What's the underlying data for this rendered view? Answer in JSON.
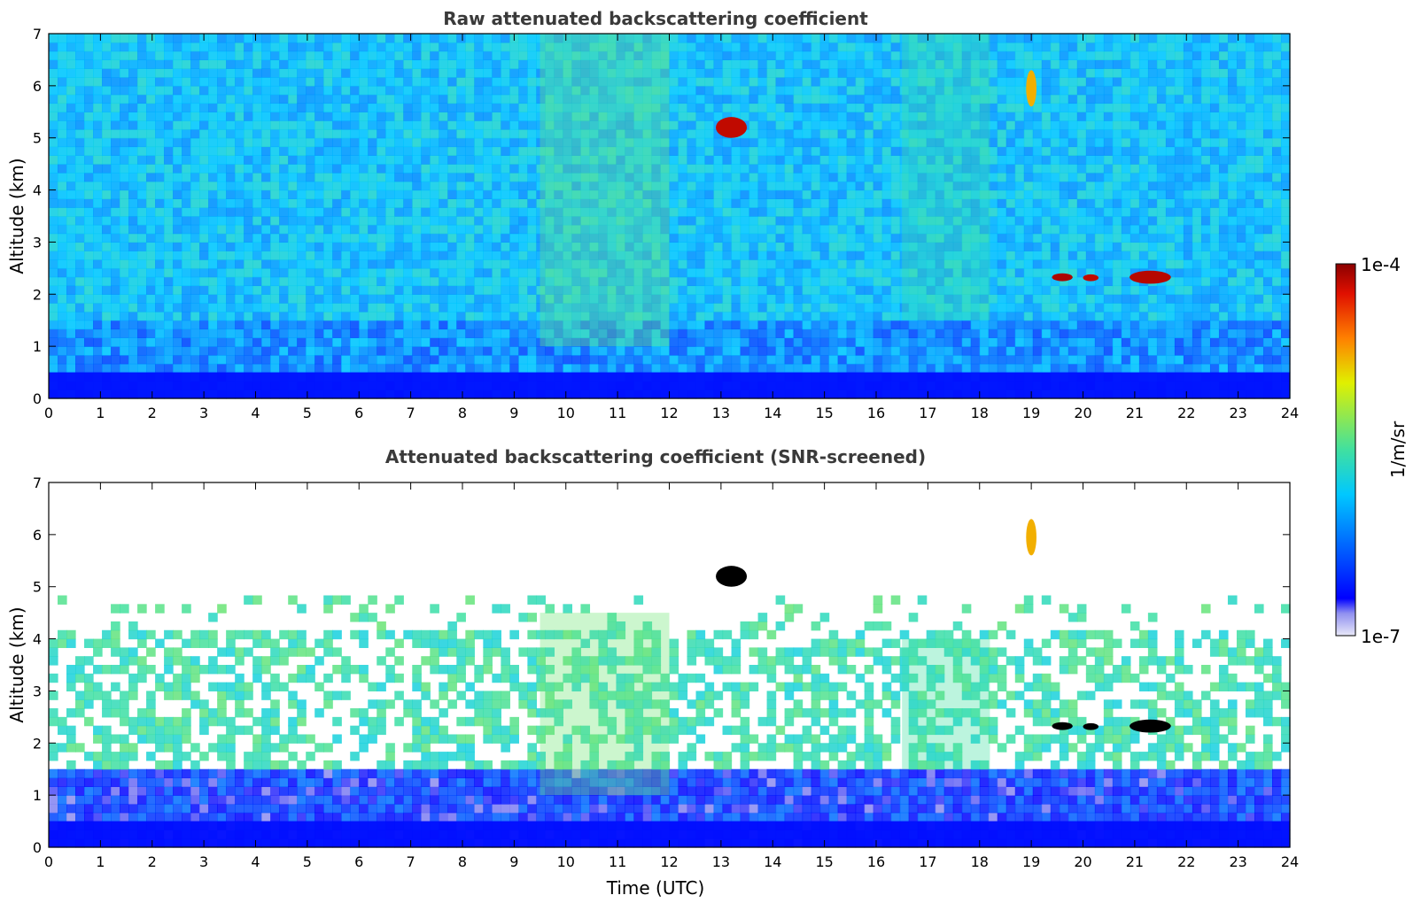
{
  "chart_data": [
    {
      "type": "heatmap",
      "title": "Raw attenuated backscattering coefficient",
      "xlabel": "",
      "ylabel": "Altitude (km)",
      "xlim": [
        0,
        24
      ],
      "ylim": [
        0,
        7
      ],
      "xticks": [
        "0",
        "1",
        "2",
        "3",
        "4",
        "5",
        "6",
        "7",
        "8",
        "9",
        "10",
        "11",
        "12",
        "13",
        "14",
        "15",
        "16",
        "17",
        "18",
        "19",
        "20",
        "21",
        "22",
        "23",
        "24"
      ],
      "yticks": [
        "0",
        "1",
        "2",
        "3",
        "4",
        "5",
        "6",
        "7"
      ],
      "features": [
        {
          "label": "boundary layer",
          "x_range": [
            0,
            24
          ],
          "y_range": [
            0,
            0.5
          ],
          "level": 0.12
        },
        {
          "label": "cloud",
          "x_range": [
            12.9,
            13.5
          ],
          "y_range": [
            5.0,
            5.4
          ],
          "level": 0.95
        },
        {
          "label": "cloud",
          "x_range": [
            19.4,
            19.8
          ],
          "y_range": [
            2.25,
            2.4
          ],
          "level": 0.97
        },
        {
          "label": "cloud",
          "x_range": [
            20.0,
            20.3
          ],
          "y_range": [
            2.25,
            2.38
          ],
          "level": 0.95
        },
        {
          "label": "cloud",
          "x_range": [
            20.9,
            21.7
          ],
          "y_range": [
            2.2,
            2.45
          ],
          "level": 0.96
        },
        {
          "label": "aerosol layer",
          "x_range": [
            9.5,
            12.0
          ],
          "y_range": [
            1.0,
            7.0
          ],
          "level": 0.55
        },
        {
          "label": "aerosol layer",
          "x_range": [
            16.5,
            18.2
          ],
          "y_range": [
            1.5,
            7.0
          ],
          "level": 0.5
        },
        {
          "label": "cloud",
          "x_range": [
            18.9,
            19.1
          ],
          "y_range": [
            5.6,
            6.3
          ],
          "level": 0.75
        }
      ]
    },
    {
      "type": "heatmap",
      "title": "Attenuated backscattering coefficient (SNR-screened)",
      "xlabel": "Time (UTC)",
      "ylabel": "Altitude (km)",
      "xlim": [
        0,
        24
      ],
      "ylim": [
        0,
        7
      ],
      "xticks": [
        "0",
        "1",
        "2",
        "3",
        "4",
        "5",
        "6",
        "7",
        "8",
        "9",
        "10",
        "11",
        "12",
        "13",
        "14",
        "15",
        "16",
        "17",
        "18",
        "19",
        "20",
        "21",
        "22",
        "23",
        "24"
      ],
      "yticks": [
        "0",
        "1",
        "2",
        "3",
        "4",
        "5",
        "6",
        "7"
      ],
      "features": [
        {
          "label": "boundary layer",
          "x_range": [
            0,
            24
          ],
          "y_range": [
            0,
            0.5
          ],
          "level": 0.12
        },
        {
          "label": "cloud",
          "x_range": [
            12.9,
            13.5
          ],
          "y_range": [
            5.0,
            5.4
          ],
          "level": 1.0
        },
        {
          "label": "cloud",
          "x_range": [
            19.4,
            19.8
          ],
          "y_range": [
            2.25,
            2.4
          ],
          "level": 1.0
        },
        {
          "label": "cloud",
          "x_range": [
            20.0,
            20.3
          ],
          "y_range": [
            2.25,
            2.38
          ],
          "level": 1.0
        },
        {
          "label": "cloud",
          "x_range": [
            20.9,
            21.7
          ],
          "y_range": [
            2.2,
            2.45
          ],
          "level": 1.0
        },
        {
          "label": "aerosol layer",
          "x_range": [
            9.5,
            12.0
          ],
          "y_range": [
            1.0,
            4.5
          ],
          "level": 0.55
        },
        {
          "label": "aerosol layer",
          "x_range": [
            16.5,
            18.2
          ],
          "y_range": [
            1.5,
            4.0
          ],
          "level": 0.5
        },
        {
          "label": "cloud",
          "x_range": [
            18.9,
            19.1
          ],
          "y_range": [
            5.6,
            6.3
          ],
          "level": 0.75
        }
      ]
    }
  ],
  "colorbar": {
    "label": "1/m/sr",
    "min_label": "1e-7",
    "max_label": "1e-4",
    "scale": "log",
    "colormap": [
      "#e8e8f8",
      "#0000ff",
      "#00c8ff",
      "#40e0a0",
      "#e0f000",
      "#ff8000",
      "#8b0000"
    ]
  }
}
